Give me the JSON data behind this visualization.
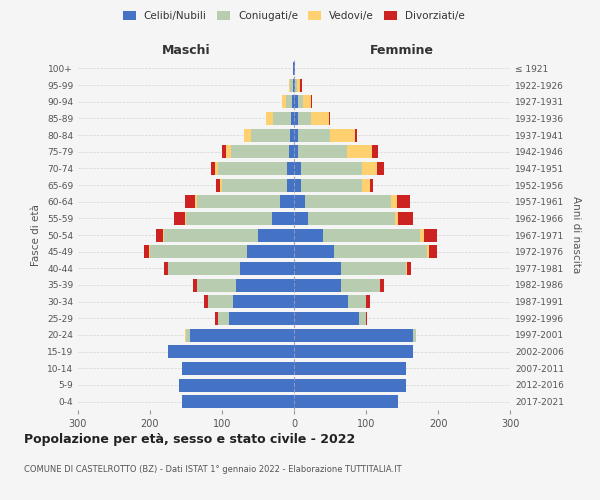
{
  "age_groups": [
    "0-4",
    "5-9",
    "10-14",
    "15-19",
    "20-24",
    "25-29",
    "30-34",
    "35-39",
    "40-44",
    "45-49",
    "50-54",
    "55-59",
    "60-64",
    "65-69",
    "70-74",
    "75-79",
    "80-84",
    "85-89",
    "90-94",
    "95-99",
    "100+"
  ],
  "birth_years": [
    "2017-2021",
    "2012-2016",
    "2007-2011",
    "2002-2006",
    "1997-2001",
    "1992-1996",
    "1987-1991",
    "1982-1986",
    "1977-1981",
    "1972-1976",
    "1967-1971",
    "1962-1966",
    "1957-1961",
    "1952-1956",
    "1947-1951",
    "1942-1946",
    "1937-1941",
    "1932-1936",
    "1927-1931",
    "1922-1926",
    "≤ 1921"
  ],
  "males": {
    "celibi": [
      155,
      160,
      155,
      175,
      145,
      90,
      85,
      80,
      75,
      65,
      50,
      30,
      20,
      10,
      10,
      7,
      5,
      4,
      3,
      2,
      1
    ],
    "coniugati": [
      0,
      0,
      0,
      0,
      5,
      15,
      35,
      55,
      100,
      135,
      130,
      120,
      115,
      90,
      95,
      80,
      55,
      25,
      8,
      3,
      0
    ],
    "vedovi": [
      0,
      0,
      0,
      0,
      2,
      0,
      0,
      0,
      0,
      1,
      2,
      2,
      2,
      3,
      5,
      8,
      10,
      10,
      5,
      2,
      0
    ],
    "divorziati": [
      0,
      0,
      0,
      0,
      0,
      5,
      5,
      5,
      5,
      8,
      10,
      15,
      15,
      5,
      5,
      5,
      0,
      0,
      0,
      0,
      0
    ]
  },
  "females": {
    "nubili": [
      145,
      155,
      155,
      165,
      165,
      90,
      75,
      65,
      65,
      55,
      40,
      20,
      15,
      10,
      10,
      5,
      5,
      5,
      5,
      2,
      1
    ],
    "coniugate": [
      0,
      0,
      0,
      0,
      5,
      10,
      25,
      55,
      90,
      130,
      135,
      120,
      120,
      85,
      85,
      68,
      45,
      18,
      8,
      2,
      0
    ],
    "vedove": [
      0,
      0,
      0,
      0,
      0,
      0,
      0,
      0,
      2,
      2,
      5,
      5,
      8,
      10,
      20,
      35,
      35,
      25,
      10,
      5,
      0
    ],
    "divorziate": [
      0,
      0,
      0,
      0,
      0,
      2,
      5,
      5,
      5,
      12,
      18,
      20,
      18,
      5,
      10,
      8,
      2,
      2,
      2,
      2,
      0
    ]
  },
  "color_celibi": "#4472C4",
  "color_coniugati": "#B8CCB0",
  "color_vedovi": "#FFD070",
  "color_divorziati": "#CC2222",
  "title": "Popolazione per età, sesso e stato civile - 2022",
  "subtitle": "COMUNE DI CASTELROTTO (BZ) - Dati ISTAT 1° gennaio 2022 - Elaborazione TUTTITALIA.IT",
  "xlabel_left": "Maschi",
  "xlabel_right": "Femmine",
  "ylabel_left": "Fasce di età",
  "ylabel_right": "Anni di nascita",
  "xlim": 300,
  "bg_color": "#f5f5f5",
  "grid_color": "#cccccc"
}
